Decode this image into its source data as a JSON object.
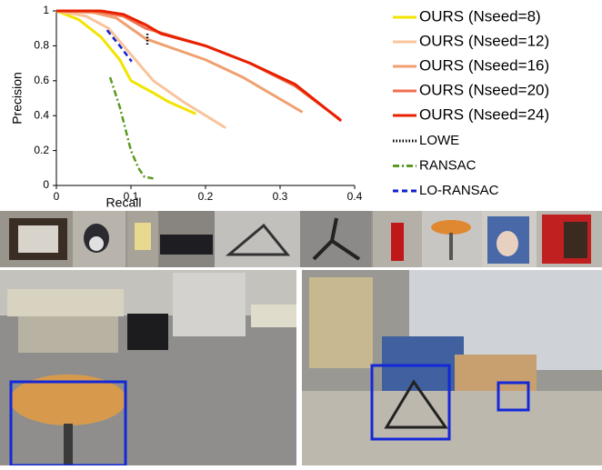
{
  "chart_data": {
    "type": "line",
    "xlabel": "Recall",
    "ylabel": "Precision",
    "xlim": [
      0,
      0.4
    ],
    "ylim": [
      0,
      1
    ],
    "xticks": [
      0,
      0.1,
      0.2,
      0.3,
      0.4
    ],
    "yticks": [
      0,
      0.2,
      0.4,
      0.6,
      0.8,
      1
    ],
    "series": [
      {
        "name": "OURS (Nseed=8)",
        "color": "#f2e400",
        "dash": "solid",
        "x": [
          0,
          0.03,
          0.06,
          0.085,
          0.1,
          0.13,
          0.15,
          0.187
        ],
        "values": [
          1,
          0.95,
          0.85,
          0.72,
          0.6,
          0.53,
          0.48,
          0.41
        ]
      },
      {
        "name": "OURS (Nseed=12)",
        "color": "#f8c49c",
        "dash": "solid",
        "x": [
          0,
          0.04,
          0.07,
          0.1,
          0.13,
          0.17,
          0.227
        ],
        "values": [
          1,
          0.97,
          0.9,
          0.75,
          0.6,
          0.48,
          0.33
        ]
      },
      {
        "name": "OURS (Nseed=16)",
        "color": "#f0a070",
        "dash": "solid",
        "x": [
          0,
          0.05,
          0.08,
          0.12,
          0.16,
          0.2,
          0.25,
          0.33
        ],
        "values": [
          1,
          0.99,
          0.96,
          0.84,
          0.78,
          0.72,
          0.62,
          0.42
        ]
      },
      {
        "name": "OURS (Nseed=20)",
        "color": "#f07050",
        "dash": "solid",
        "x": [
          0,
          0.05,
          0.09,
          0.12,
          0.16,
          0.2,
          0.26,
          0.32,
          0.38
        ],
        "values": [
          1,
          1,
          0.97,
          0.9,
          0.85,
          0.8,
          0.7,
          0.57,
          0.38
        ]
      },
      {
        "name": "OURS (Nseed=24)",
        "color": "#e82000",
        "dash": "solid",
        "x": [
          0,
          0.06,
          0.09,
          0.12,
          0.14,
          0.2,
          0.26,
          0.32,
          0.382
        ],
        "values": [
          1,
          1,
          0.98,
          0.92,
          0.87,
          0.8,
          0.7,
          0.58,
          0.37
        ]
      },
      {
        "name": "LOWE",
        "color": "#000000",
        "dash": "dotted",
        "x": [
          0.122,
          0.122
        ],
        "values": [
          0.87,
          0.8
        ]
      },
      {
        "name": "RANSAC",
        "color": "#5a9a20",
        "dash": "dashdot",
        "x": [
          0.072,
          0.085,
          0.1,
          0.11,
          0.118,
          0.13
        ],
        "values": [
          0.62,
          0.45,
          0.2,
          0.1,
          0.05,
          0.04
        ]
      },
      {
        "name": "LO-RANSAC",
        "color": "#1020d0",
        "dash": "dashed",
        "x": [
          0.068,
          0.085,
          0.101
        ],
        "values": [
          0.89,
          0.8,
          0.71
        ]
      }
    ]
  }
}
